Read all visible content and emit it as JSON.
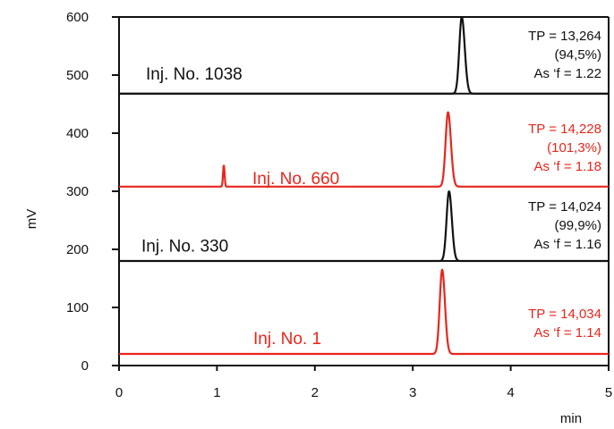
{
  "chart_data": {
    "type": "line",
    "title": "",
    "xlabel": "min",
    "ylabel": "mV",
    "xlim": [
      0,
      5
    ],
    "ylim": [
      0,
      600
    ],
    "x_ticks": [
      "0",
      "1",
      "2",
      "3",
      "4",
      "5"
    ],
    "y_ticks": [
      "0",
      "100",
      "200",
      "300",
      "400",
      "500",
      "600"
    ],
    "grid": false,
    "colors": {
      "black": "#111111",
      "red": "#e8261c"
    },
    "series": [
      {
        "name": "Inj. No. 1038",
        "color": "black",
        "baseline_mv": 468,
        "stacked": true,
        "peaks": [
          {
            "time_min": 3.5,
            "height_mv": 132,
            "sigma_min": 0.025,
            "tail": 1.22
          }
        ],
        "annotation": [
          "TP = 13,264",
          "(94,5%)",
          "As ‘f = 1.22"
        ]
      },
      {
        "name": "Inj. No. 660",
        "color": "red",
        "baseline_mv": 308,
        "stacked": false,
        "peaks": [
          {
            "time_min": 3.36,
            "height_mv": 128,
            "sigma_min": 0.025,
            "tail": 1.18
          },
          {
            "time_min": 1.07,
            "height_mv": 37,
            "sigma_min": 0.008,
            "tail": 1.0
          }
        ],
        "annotation": [
          "TP = 14,228",
          "(101,3%)",
          "As ‘f = 1.18"
        ]
      },
      {
        "name": "Inj. No. 330",
        "color": "black",
        "baseline_mv": 180,
        "stacked": true,
        "peaks": [
          {
            "time_min": 3.37,
            "height_mv": 120,
            "sigma_min": 0.025,
            "tail": 1.16
          }
        ],
        "annotation": [
          "TP = 14,024",
          "(99,9%)",
          "As ‘f = 1.16"
        ]
      },
      {
        "name": "Inj. No. 1",
        "color": "red",
        "baseline_mv": 20,
        "stacked": false,
        "peaks": [
          {
            "time_min": 3.3,
            "height_mv": 145,
            "sigma_min": 0.025,
            "tail": 1.14
          }
        ],
        "annotation": [
          "TP = 14,034",
          "As ‘f = 1.14"
        ]
      }
    ]
  }
}
